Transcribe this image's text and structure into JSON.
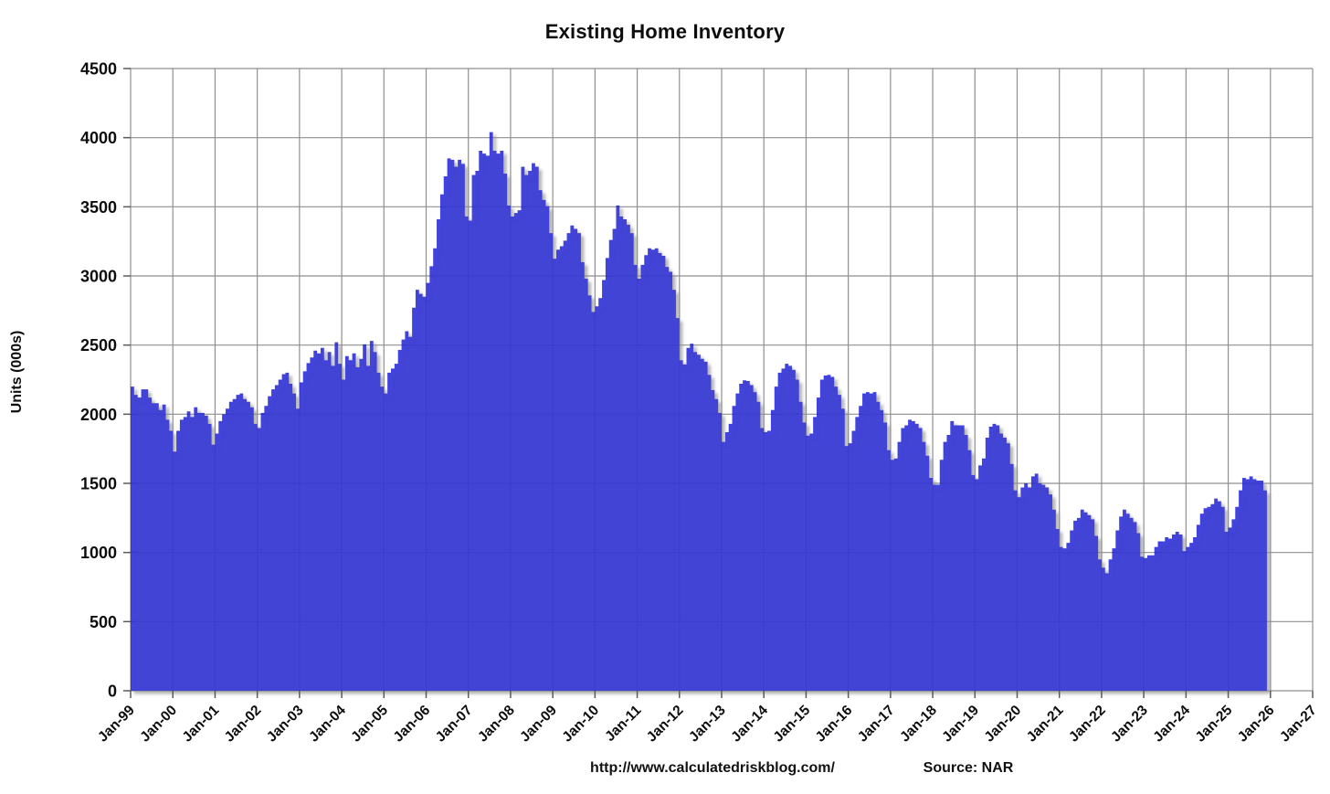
{
  "title": "Existing Home Inventory",
  "footer": {
    "url": "http://www.calculatedriskblog.com/",
    "source": "Source: NAR"
  },
  "chart_data": {
    "type": "bar",
    "title": "Existing Home Inventory",
    "xlabel": "",
    "ylabel": "Units (000s)",
    "ylim": [
      0,
      4500
    ],
    "y_tick_step": 500,
    "y_ticklabels": [
      "0",
      "500",
      "1000",
      "1500",
      "2000",
      "2500",
      "3000",
      "3500",
      "4000",
      "4500"
    ],
    "grid": true,
    "legend": "none",
    "bar_color": "#1e21d7",
    "bar_opacity": 0.85,
    "grid_color": "#8f8f8f",
    "axis_text_color": "#0d0d0d",
    "start_month": "Jan-99",
    "end_month": "Nov-25",
    "months_per_tick": 12,
    "x_ticklabels": [
      "Jan-99",
      "Jan-00",
      "Jan-01",
      "Jan-02",
      "Jan-03",
      "Jan-04",
      "Jan-05",
      "Jan-06",
      "Jan-07",
      "Jan-08",
      "Jan-09",
      "Jan-10",
      "Jan-11",
      "Jan-12",
      "Jan-13",
      "Jan-14",
      "Jan-15",
      "Jan-16",
      "Jan-17",
      "Jan-18",
      "Jan-19",
      "Jan-20",
      "Jan-21",
      "Jan-22",
      "Jan-23",
      "Jan-24",
      "Jan-25",
      "Jan-26",
      "Jan-27"
    ],
    "values": [
      2200,
      2140,
      2120,
      2180,
      2180,
      2120,
      2080,
      2080,
      2030,
      2070,
      1960,
      1880,
      1730,
      1880,
      1960,
      1980,
      2020,
      1980,
      2050,
      2010,
      2010,
      1990,
      1930,
      1780,
      1860,
      1950,
      2000,
      2040,
      2090,
      2110,
      2140,
      2150,
      2110,
      2090,
      2050,
      1930,
      1900,
      2010,
      2060,
      2130,
      2180,
      2210,
      2250,
      2290,
      2300,
      2220,
      2150,
      2040,
      2230,
      2310,
      2370,
      2410,
      2460,
      2440,
      2480,
      2390,
      2450,
      2350,
      2520,
      2365,
      2250,
      2420,
      2390,
      2440,
      2340,
      2400,
      2505,
      2350,
      2530,
      2450,
      2300,
      2200,
      2150,
      2300,
      2330,
      2365,
      2465,
      2540,
      2600,
      2560,
      2770,
      2900,
      2870,
      2850,
      2950,
      3070,
      3200,
      3410,
      3590,
      3720,
      3850,
      3840,
      3790,
      3840,
      3810,
      3430,
      3400,
      3730,
      3760,
      3905,
      3885,
      3870,
      4040,
      3905,
      3885,
      3905,
      3740,
      3510,
      3430,
      3455,
      3475,
      3790,
      3730,
      3760,
      3815,
      3790,
      3620,
      3550,
      3505,
      3310,
      3125,
      3190,
      3215,
      3255,
      3310,
      3365,
      3340,
      3310,
      3100,
      2980,
      2860,
      2740,
      2780,
      2840,
      2970,
      3130,
      3260,
      3340,
      3510,
      3430,
      3410,
      3370,
      3310,
      3080,
      2980,
      3080,
      3150,
      3200,
      3190,
      3200,
      3165,
      3145,
      3065,
      3030,
      2900,
      2695,
      2390,
      2360,
      2480,
      2510,
      2450,
      2430,
      2400,
      2380,
      2285,
      2175,
      2110,
      2010,
      1800,
      1870,
      1930,
      2060,
      2150,
      2220,
      2245,
      2240,
      2210,
      2160,
      2090,
      1900,
      1870,
      1880,
      2030,
      2200,
      2300,
      2330,
      2365,
      2350,
      2320,
      2250,
      2090,
      1940,
      1845,
      1860,
      1980,
      2120,
      2250,
      2280,
      2285,
      2270,
      2200,
      2140,
      2040,
      1770,
      1790,
      1880,
      1980,
      2060,
      2150,
      2160,
      2150,
      2160,
      2090,
      2030,
      1940,
      1740,
      1670,
      1680,
      1800,
      1900,
      1920,
      1960,
      1950,
      1930,
      1900,
      1800,
      1700,
      1540,
      1490,
      1490,
      1670,
      1800,
      1850,
      1950,
      1920,
      1920,
      1920,
      1850,
      1740,
      1560,
      1530,
      1630,
      1680,
      1830,
      1910,
      1930,
      1920,
      1860,
      1830,
      1790,
      1640,
      1450,
      1400,
      1470,
      1500,
      1470,
      1550,
      1570,
      1500,
      1490,
      1470,
      1420,
      1310,
      1170,
      1040,
      1030,
      1070,
      1160,
      1230,
      1250,
      1310,
      1290,
      1270,
      1240,
      1120,
      950,
      890,
      850,
      950,
      1030,
      1160,
      1260,
      1310,
      1280,
      1250,
      1220,
      1140,
      970,
      960,
      980,
      980,
      1040,
      1080,
      1080,
      1110,
      1100,
      1130,
      1150,
      1130,
      1010,
      1040,
      1070,
      1110,
      1200,
      1280,
      1320,
      1330,
      1350,
      1390,
      1370,
      1330,
      1150,
      1180,
      1240,
      1330,
      1450,
      1540,
      1530,
      1550,
      1530,
      1520,
      1520,
      1450
    ]
  }
}
